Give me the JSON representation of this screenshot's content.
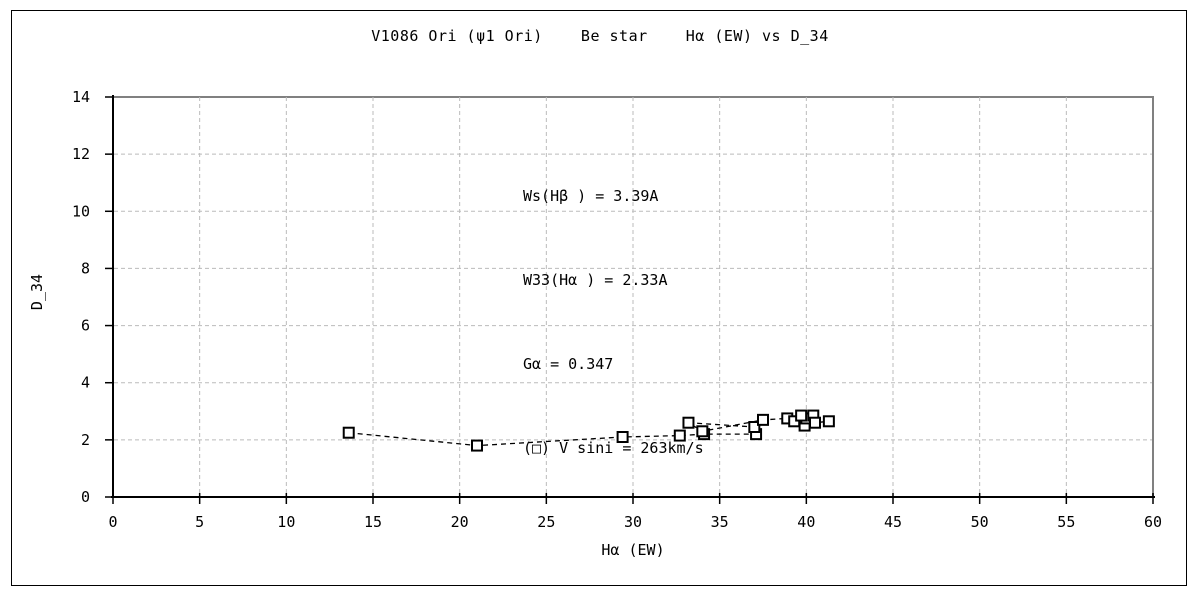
{
  "chart": {
    "title": "V1086 Ori (ψ1 Ori)    Be star    Hα (EW) vs D_34",
    "xlabel": "Hα (EW)",
    "ylabel": "D_34"
  },
  "annotation": {
    "lines": [
      "Ws(Hβ ) = 3.39A",
      "W33(Hα ) = 2.33A",
      "Gα = 0.347",
      "(□) V sini = 263km/s"
    ]
  },
  "chart_data": {
    "type": "scatter",
    "title": "V1086 Ori (ψ1 Ori)    Be star    Hα (EW) vs D_34",
    "xlabel": "Hα (EW)",
    "ylabel": "D_34",
    "xlim": [
      0,
      60
    ],
    "ylim": [
      0,
      14
    ],
    "xticks": [
      0,
      5,
      10,
      15,
      20,
      25,
      30,
      35,
      40,
      45,
      50,
      55,
      60
    ],
    "yticks": [
      0,
      2,
      4,
      6,
      8,
      10,
      12,
      14
    ],
    "grid": true,
    "grid_style": "dashed",
    "line_style": "dashed",
    "marker": "open-square",
    "legend_note": "(□) V sini = 263km/s",
    "series": [
      {
        "name": "V sini = 263km/s",
        "points": [
          [
            13.6,
            2.25
          ],
          [
            21.0,
            1.8
          ],
          [
            29.4,
            2.1
          ],
          [
            32.7,
            2.15
          ],
          [
            34.1,
            2.2
          ],
          [
            37.1,
            2.2
          ],
          [
            37.0,
            2.45
          ],
          [
            33.2,
            2.6
          ],
          [
            34.0,
            2.3
          ],
          [
            37.5,
            2.7
          ],
          [
            38.9,
            2.75
          ],
          [
            39.9,
            2.5
          ],
          [
            39.3,
            2.65
          ],
          [
            40.0,
            2.75
          ],
          [
            39.7,
            2.85
          ],
          [
            40.4,
            2.85
          ],
          [
            40.5,
            2.6
          ],
          [
            41.3,
            2.65
          ]
        ]
      }
    ],
    "annotations": [
      "Ws(Hβ ) = 3.39A",
      "W33(Hα ) = 2.33A",
      "Gα = 0.347",
      "(□) V sini = 263km/s"
    ],
    "colors": {
      "axis": "#000000",
      "frame": "#808080",
      "grid": "#bbbbbb",
      "marker_stroke": "#000000",
      "marker_fill": "#ffffff",
      "text": "#000000",
      "background": "#ffffff"
    }
  }
}
